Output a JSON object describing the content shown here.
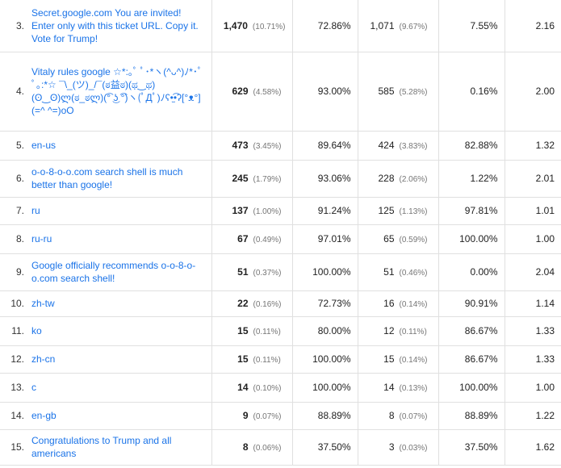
{
  "rows": [
    {
      "num": "3.",
      "language": "Secret.google.com You are invited! Enter only with this ticket URL. Copy it. Vote for Trump!",
      "users": "1,470",
      "users_pct": "(10.71%)",
      "new_sessions": "72.86%",
      "new_users": "1,071",
      "new_users_pct": "(9.67%)",
      "bounce": "7.55%",
      "pages": "2.16"
    },
    {
      "num": "4.",
      "language": "Vitaly rules google ☆*:｡ﾟ ﾟ･*ヽ(^ᴗ^)ﾉ*･ﾟ ﾟ｡:*☆ ¯\\_(ツ)_/¯(ಠ益ಠ)(ಥ‿ಥ)(ʘ‿ʘ)ლ(ಠ_ಠლ)(͡° ͜ʖ ͡°)ヽ(ﾟДﾟ)ﾉʕ•̫͡•ʔ[°ᴥ°](=^ ^=)oO",
      "users": "629",
      "users_pct": "(4.58%)",
      "new_sessions": "93.00%",
      "new_users": "585",
      "new_users_pct": "(5.28%)",
      "bounce": "0.16%",
      "pages": "2.00"
    },
    {
      "num": "5.",
      "language": "en-us",
      "users": "473",
      "users_pct": "(3.45%)",
      "new_sessions": "89.64%",
      "new_users": "424",
      "new_users_pct": "(3.83%)",
      "bounce": "82.88%",
      "pages": "1.32"
    },
    {
      "num": "6.",
      "language": "o-o-8-o-o.com search shell is much better than google!",
      "users": "245",
      "users_pct": "(1.79%)",
      "new_sessions": "93.06%",
      "new_users": "228",
      "new_users_pct": "(2.06%)",
      "bounce": "1.22%",
      "pages": "2.01"
    },
    {
      "num": "7.",
      "language": "ru",
      "users": "137",
      "users_pct": "(1.00%)",
      "new_sessions": "91.24%",
      "new_users": "125",
      "new_users_pct": "(1.13%)",
      "bounce": "97.81%",
      "pages": "1.01"
    },
    {
      "num": "8.",
      "language": "ru-ru",
      "users": "67",
      "users_pct": "(0.49%)",
      "new_sessions": "97.01%",
      "new_users": "65",
      "new_users_pct": "(0.59%)",
      "bounce": "100.00%",
      "pages": "1.00"
    },
    {
      "num": "9.",
      "language": "Google officially recommends o-o-8-o-o.com search shell!",
      "users": "51",
      "users_pct": "(0.37%)",
      "new_sessions": "100.00%",
      "new_users": "51",
      "new_users_pct": "(0.46%)",
      "bounce": "0.00%",
      "pages": "2.04"
    },
    {
      "num": "10.",
      "language": "zh-tw",
      "users": "22",
      "users_pct": "(0.16%)",
      "new_sessions": "72.73%",
      "new_users": "16",
      "new_users_pct": "(0.14%)",
      "bounce": "90.91%",
      "pages": "1.14"
    },
    {
      "num": "11.",
      "language": "ko",
      "users": "15",
      "users_pct": "(0.11%)",
      "new_sessions": "80.00%",
      "new_users": "12",
      "new_users_pct": "(0.11%)",
      "bounce": "86.67%",
      "pages": "1.33"
    },
    {
      "num": "12.",
      "language": "zh-cn",
      "users": "15",
      "users_pct": "(0.11%)",
      "new_sessions": "100.00%",
      "new_users": "15",
      "new_users_pct": "(0.14%)",
      "bounce": "86.67%",
      "pages": "1.33"
    },
    {
      "num": "13.",
      "language": "c",
      "users": "14",
      "users_pct": "(0.10%)",
      "new_sessions": "100.00%",
      "new_users": "14",
      "new_users_pct": "(0.13%)",
      "bounce": "100.00%",
      "pages": "1.00"
    },
    {
      "num": "14.",
      "language": "en-gb",
      "users": "9",
      "users_pct": "(0.07%)",
      "new_sessions": "88.89%",
      "new_users": "8",
      "new_users_pct": "(0.07%)",
      "bounce": "88.89%",
      "pages": "1.22"
    },
    {
      "num": "15.",
      "language": "Congratulations to Trump and all americans",
      "users": "8",
      "users_pct": "(0.06%)",
      "new_sessions": "37.50%",
      "new_users": "3",
      "new_users_pct": "(0.03%)",
      "bounce": "37.50%",
      "pages": "1.62"
    }
  ]
}
